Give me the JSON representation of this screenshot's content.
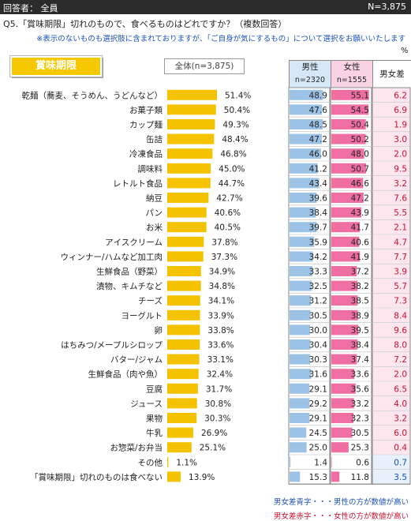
{
  "header": {
    "respondents": "回答者： 全員",
    "n_total": "N=3,875"
  },
  "question": "Q5.「賞味期限」切れのもので、食べるものはどれですか？（複数回答）",
  "note": "※表示のないものも選択肢に含まれておりますが、「ご自身が気にするもの」について選択をお願いいたします",
  "percent_unit": "%",
  "badge": "賞味期限",
  "total_label": "全体(n=3,875)",
  "columns": {
    "male": "男性",
    "male_n": "n=2320",
    "female": "女性",
    "female_n": "n=1555",
    "diff": "男女差"
  },
  "legend": {
    "blue": "男女差青字・・・男性の方が数値が高い",
    "red": "男女差赤字・・・女性の方が数値が高い"
  },
  "colors": {
    "total_bar": "#f5c200",
    "male_bar": "#9cc3e5",
    "female_bar": "#f06fa3",
    "diff_blue": "#1a4fb5",
    "diff_red": "#c8102e"
  },
  "chart_data": {
    "type": "bar",
    "categories": [
      "乾麺（蕎麦、そうめん、うどんなど）",
      "お菓子類",
      "カップ麺",
      "缶詰",
      "冷凍食品",
      "調味料",
      "レトルト食品",
      "納豆",
      "パン",
      "お米",
      "アイスクリーム",
      "ウィンナー/ハムなど加工肉",
      "生鮮食品（野菜）",
      "漬物、キムチなど",
      "チーズ",
      "ヨーグルト",
      "卵",
      "はちみつ/メープルシロップ",
      "バター/ジャム",
      "生鮮食品（肉や魚）",
      "豆腐",
      "ジュース",
      "果物",
      "牛乳",
      "お惣菜/お弁当",
      "その他",
      "「賞味期限」切れのものは食べない"
    ],
    "total_labels": [
      "51.4%",
      "50.4%",
      "49.3%",
      "48.4%",
      "46.8%",
      "45.0%",
      "44.7%",
      "42.7%",
      "40.6%",
      "40.5%",
      "37.8%",
      "37.3%",
      "34.9%",
      "34.8%",
      "34.1%",
      "33.9%",
      "33.8%",
      "33.6%",
      "33.1%",
      "32.4%",
      "31.7%",
      "30.8%",
      "30.3%",
      "26.9%",
      "25.1%",
      "1.1%",
      "13.9%"
    ],
    "series": [
      {
        "name": "全体(n=3,875)",
        "values": [
          51.4,
          50.4,
          49.3,
          48.4,
          46.8,
          45.0,
          44.7,
          42.7,
          40.6,
          40.5,
          37.8,
          37.3,
          34.9,
          34.8,
          34.1,
          33.9,
          33.8,
          33.6,
          33.1,
          32.4,
          31.7,
          30.8,
          30.3,
          26.9,
          25.1,
          1.1,
          13.9
        ]
      },
      {
        "name": "男性",
        "values": [
          48.9,
          47.6,
          48.5,
          47.2,
          46.0,
          41.2,
          43.4,
          39.6,
          38.4,
          39.7,
          35.9,
          34.2,
          33.3,
          32.5,
          31.2,
          30.5,
          30.0,
          30.4,
          30.3,
          31.6,
          29.1,
          29.2,
          29.1,
          24.5,
          25.0,
          1.4,
          15.3
        ]
      },
      {
        "name": "女性",
        "values": [
          55.1,
          54.5,
          50.4,
          50.2,
          48.0,
          50.7,
          46.6,
          47.2,
          43.9,
          41.7,
          40.6,
          41.9,
          37.2,
          38.2,
          38.5,
          38.9,
          39.5,
          38.4,
          37.4,
          33.6,
          35.6,
          33.2,
          32.3,
          30.5,
          25.3,
          0.6,
          11.8
        ]
      },
      {
        "name": "男女差",
        "values": [
          6.2,
          6.9,
          1.9,
          3.0,
          2.0,
          9.5,
          3.2,
          7.6,
          5.5,
          2.1,
          4.7,
          7.7,
          3.9,
          5.7,
          7.3,
          8.4,
          9.6,
          8.0,
          7.2,
          2.0,
          6.5,
          4.0,
          3.2,
          6.0,
          0.4,
          0.7,
          3.5
        ]
      }
    ],
    "male_labels": [
      "48.9",
      "47.6",
      "48.5",
      "47.2",
      "46.0",
      "41.2",
      "43.4",
      "39.6",
      "38.4",
      "39.7",
      "35.9",
      "34.2",
      "33.3",
      "32.5",
      "31.2",
      "30.5",
      "30.0",
      "30.4",
      "30.3",
      "31.6",
      "29.1",
      "29.2",
      "29.1",
      "24.5",
      "25.0",
      "1.4",
      "15.3"
    ],
    "female_labels": [
      "55.1",
      "54.5",
      "50.4",
      "50.2",
      "48.0",
      "50.7",
      "46.6",
      "47.2",
      "43.9",
      "41.7",
      "40.6",
      "41.9",
      "37.2",
      "38.2",
      "38.5",
      "38.9",
      "39.5",
      "38.4",
      "37.4",
      "33.6",
      "35.6",
      "33.2",
      "32.3",
      "30.5",
      "25.3",
      "0.6",
      "11.8"
    ],
    "diff_labels": [
      "6.2",
      "6.9",
      "1.9",
      "3.0",
      "2.0",
      "9.5",
      "3.2",
      "7.6",
      "5.5",
      "2.1",
      "4.7",
      "7.7",
      "3.9",
      "5.7",
      "7.3",
      "8.4",
      "9.6",
      "8.0",
      "7.2",
      "2.0",
      "6.5",
      "4.0",
      "3.2",
      "6.0",
      "0.4",
      "0.7",
      "3.5"
    ],
    "diff_higher": [
      "female",
      "female",
      "female",
      "female",
      "female",
      "female",
      "female",
      "female",
      "female",
      "female",
      "female",
      "female",
      "female",
      "female",
      "female",
      "female",
      "female",
      "female",
      "female",
      "female",
      "female",
      "female",
      "female",
      "female",
      "female",
      "male",
      "male"
    ]
  }
}
